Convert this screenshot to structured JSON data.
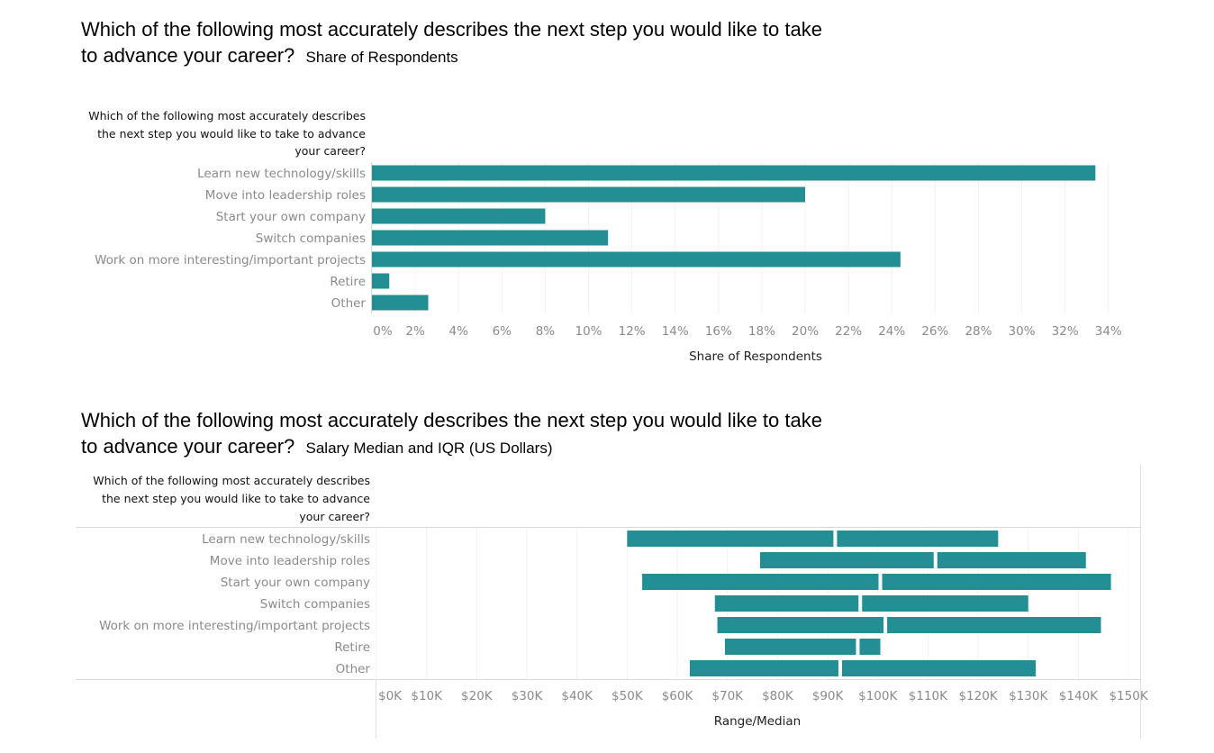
{
  "chart_data": [
    {
      "type": "bar",
      "orientation": "horizontal",
      "title_line1": "Which of the following most accurately describes the next step  you would like to take",
      "title_line2": "to advance your career?",
      "subtitle": "Share of Respondents",
      "category_header": "Which of the following most accurately describes the next step you would like to take to advance your career?",
      "categories": [
        "Learn new technology/skills",
        "Move into leadership roles",
        "Start your own company",
        "Switch companies",
        "Work on more interesting/important projects",
        "Retire",
        "Other"
      ],
      "values": [
        33.4,
        20.0,
        8.0,
        10.9,
        24.4,
        0.8,
        2.6
      ],
      "xlabel": "Share of Respondents",
      "xlim": [
        0,
        34.8
      ],
      "xticks": [
        0,
        2,
        4,
        6,
        8,
        10,
        12,
        14,
        16,
        18,
        20,
        22,
        24,
        26,
        28,
        30,
        32,
        34
      ],
      "tick_labels": [
        "0%",
        "2%",
        "4%",
        "6%",
        "8%",
        "10%",
        "12%",
        "14%",
        "16%",
        "18%",
        "20%",
        "22%",
        "24%",
        "26%",
        "28%",
        "30%",
        "32%",
        "34%"
      ],
      "color": "#238e93",
      "grid": true
    },
    {
      "type": "range",
      "orientation": "horizontal",
      "title_line1": "Which of the following most accurately describes the next step  you would like to take",
      "title_line2": "to advance your career?",
      "subtitle": "Salary Median and IQR (US Dollars)",
      "category_header": "Which of the following most accurately describes the next step you would like to take to advance your career?",
      "categories": [
        "Learn new technology/skills",
        "Move into leadership roles",
        "Start your own company",
        "Switch companies",
        "Work on more interesting/important projects",
        "Retire",
        "Other"
      ],
      "q1": [
        50000,
        76500,
        53000,
        67500,
        68000,
        69500,
        62500
      ],
      "median": [
        91500,
        111500,
        100500,
        96500,
        101500,
        96000,
        92500
      ],
      "q3": [
        124000,
        141500,
        146500,
        130000,
        144500,
        100500,
        131500
      ],
      "xlabel": "Range/Median",
      "xlim": [
        0,
        152500
      ],
      "xticks": [
        0,
        10000,
        20000,
        30000,
        40000,
        50000,
        60000,
        70000,
        80000,
        90000,
        100000,
        110000,
        120000,
        130000,
        140000,
        150000
      ],
      "tick_labels": [
        "$0K",
        "$10K",
        "$20K",
        "$30K",
        "$40K",
        "$50K",
        "$60K",
        "$70K",
        "$80K",
        "$90K",
        "$100K",
        "$110K",
        "$120K",
        "$130K",
        "$140K",
        "$150K"
      ],
      "color": "#238e93",
      "grid": true
    }
  ]
}
